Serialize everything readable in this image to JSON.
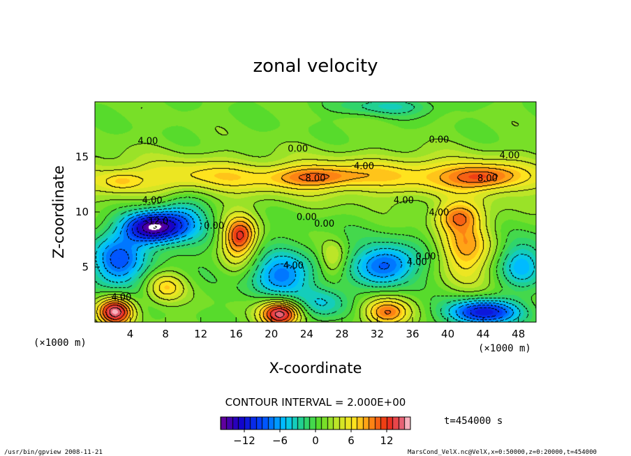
{
  "chart_data": {
    "type": "heatmap",
    "title": "zonal velocity",
    "xlabel": "X-coordinate",
    "ylabel": "Z-coordinate",
    "x_unit": "(×1000 m)",
    "z_unit": "(×1000 m)",
    "xlim": [
      0,
      50
    ],
    "zlim": [
      0,
      20
    ],
    "x_ticks": [
      4,
      8,
      12,
      16,
      20,
      24,
      28,
      32,
      36,
      40,
      44,
      48
    ],
    "z_ticks": [
      5,
      10,
      15
    ],
    "contour_interval_text": "CONTOUR INTERVAL = 2.000E+00",
    "time_text": "t=454000 s",
    "colorbar": {
      "range": [
        -16,
        16
      ],
      "ticks": [
        -12,
        -6,
        0,
        6,
        12
      ],
      "tick_labels": [
        "−12",
        "−6",
        "0",
        "6",
        "12"
      ]
    },
    "contour_labels": [
      {
        "text": "4.00",
        "x": 6,
        "z": 16.5
      },
      {
        "text": "0.00",
        "x": 23,
        "z": 15.8
      },
      {
        "text": "0.00",
        "x": 39,
        "z": 16.6
      },
      {
        "text": "4.00",
        "x": 47,
        "z": 15.2
      },
      {
        "text": "4.00",
        "x": 30.5,
        "z": 14.2
      },
      {
        "text": "8.00",
        "x": 25,
        "z": 13.1
      },
      {
        "text": "8.00",
        "x": 44.5,
        "z": 13.1
      },
      {
        "text": "4.00",
        "x": 6.5,
        "z": 11.1
      },
      {
        "text": "4.00",
        "x": 35,
        "z": 11.1
      },
      {
        "text": "4.00",
        "x": 39,
        "z": 10.0
      },
      {
        "text": "0.00",
        "x": 24,
        "z": 9.6
      },
      {
        "text": "0.00",
        "x": 26,
        "z": 9.0
      },
      {
        "text": "0.00",
        "x": 13.5,
        "z": 8.8
      },
      {
        "text": "-12.0",
        "x": 7,
        "z": 9.2
      },
      {
        "text": "0.00",
        "x": 37.5,
        "z": 6.0
      },
      {
        "text": "4.00",
        "x": 36.5,
        "z": 5.5
      },
      {
        "text": "4.00",
        "x": 22.5,
        "z": 5.2
      },
      {
        "text": "4.00",
        "x": 3,
        "z": 2.3
      }
    ],
    "features": [
      {
        "amp": 6,
        "x": 25,
        "z": 13.2,
        "sx": 5,
        "sz": 1.0
      },
      {
        "amp": 6.5,
        "x": 44,
        "z": 13.2,
        "sx": 4,
        "sz": 1.1
      },
      {
        "amp": 3,
        "x": 3,
        "z": 12.8,
        "sx": 2.2,
        "sz": 0.9
      },
      {
        "amp": 3,
        "x": 36,
        "z": 13.5,
        "sx": 10,
        "sz": 1.6
      },
      {
        "amp": 3,
        "x": 12,
        "z": 13.2,
        "sx": 8,
        "sz": 1.4
      },
      {
        "amp": -4,
        "x": 33,
        "z": 19.6,
        "sx": 6,
        "sz": 0.9
      },
      {
        "amp": -15,
        "x": 6.5,
        "z": 8.6,
        "sx": 3.2,
        "sz": 1.4
      },
      {
        "amp": -9,
        "x": 2.5,
        "z": 5.5,
        "sx": 3,
        "sz": 2.5
      },
      {
        "amp": -6,
        "x": 10,
        "z": 9.5,
        "sx": 3,
        "sz": 2.2
      },
      {
        "amp": 8,
        "x": 16.5,
        "z": 8.0,
        "sx": 1.8,
        "sz": 1.6
      },
      {
        "amp": 5,
        "x": 16,
        "z": 6.8,
        "sx": 2.2,
        "sz": 2.4
      },
      {
        "amp": -8,
        "x": 21,
        "z": 4.2,
        "sx": 3.5,
        "sz": 2.0
      },
      {
        "amp": -9,
        "x": 33,
        "z": 5.2,
        "sx": 3.5,
        "sz": 1.8
      },
      {
        "amp": 4,
        "x": 27,
        "z": 5.8,
        "sx": 1.5,
        "sz": 1.6
      },
      {
        "amp": 6,
        "x": 8,
        "z": 3.2,
        "sx": 2.2,
        "sz": 1.4
      },
      {
        "amp": 8,
        "x": 42,
        "z": 6.8,
        "sx": 3.2,
        "sz": 3.2
      },
      {
        "amp": 6,
        "x": 41,
        "z": 9.6,
        "sx": 2.5,
        "sz": 1.2
      },
      {
        "amp": -6,
        "x": 48.5,
        "z": 5.2,
        "sx": 2.5,
        "sz": 2.0
      },
      {
        "amp": 14,
        "x": 2.3,
        "z": 1.0,
        "sx": 2.0,
        "sz": 1.3
      },
      {
        "amp": 14,
        "x": 21,
        "z": 0.8,
        "sx": 2.2,
        "sz": 1.2
      },
      {
        "amp": 9,
        "x": 33,
        "z": 0.9,
        "sx": 2.5,
        "sz": 1.3
      },
      {
        "amp": -13,
        "x": 44,
        "z": 0.9,
        "sx": 4,
        "sz": 1.2
      },
      {
        "amp": -5,
        "x": 26,
        "z": 1.8,
        "sx": 3,
        "sz": 1.5
      }
    ]
  },
  "footer": {
    "left_text": "/usr/bin/gpview  2008-11-21",
    "right_text": "MarsCond_VelX.nc@VelX,x=0:50000,z=0:20000,t=454000"
  }
}
